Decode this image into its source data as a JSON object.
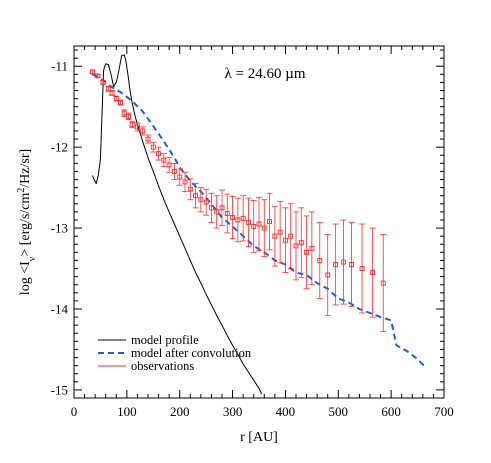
{
  "chart_data": {
    "type": "line",
    "annotation": "λ = 24.60 µm",
    "xlabel": "r [AU]",
    "ylabel_parts": {
      "a": "log <I",
      "sub": "ν",
      "b": "> [erg/s/cm",
      "sup": "2",
      "c": "/Hz/sr]"
    },
    "xlim": [
      0,
      700
    ],
    "ylim": [
      -15.1,
      -10.75
    ],
    "xticks": [
      0,
      100,
      200,
      300,
      400,
      500,
      600,
      700
    ],
    "yticks": [
      -15,
      -14,
      -13,
      -12,
      -11
    ],
    "ytick_labels": [
      "-15",
      "-14",
      "-13",
      "-12",
      "-11"
    ],
    "legend_position": "bottom-left",
    "grid": false,
    "series": [
      {
        "name": "model profile",
        "style": "solid",
        "color": "#000000",
        "x": [
          35,
          38,
          42,
          46,
          50,
          53,
          56,
          60,
          65,
          70,
          75,
          80,
          85,
          90,
          95,
          98,
          102,
          106,
          110,
          115,
          120,
          130,
          140,
          150,
          160,
          170,
          180,
          190,
          200,
          210,
          220,
          230,
          240,
          250,
          260,
          270,
          280,
          290,
          300,
          310,
          320,
          330,
          340,
          350,
          355
        ],
        "y": [
          -12.35,
          -12.4,
          -12.45,
          -12.35,
          -12.15,
          -11.6,
          -11.05,
          -10.97,
          -10.98,
          -11.1,
          -11.25,
          -11.2,
          -11.05,
          -10.87,
          -10.86,
          -10.93,
          -11.1,
          -11.3,
          -11.45,
          -11.6,
          -11.72,
          -11.93,
          -12.13,
          -12.3,
          -12.48,
          -12.65,
          -12.8,
          -12.95,
          -13.1,
          -13.25,
          -13.4,
          -13.55,
          -13.68,
          -13.82,
          -13.95,
          -14.08,
          -14.2,
          -14.33,
          -14.45,
          -14.56,
          -14.68,
          -14.78,
          -14.88,
          -14.98,
          -15.05
        ]
      },
      {
        "name": "model after convolution",
        "style": "dashed",
        "color": "#1f5fd6",
        "x": [
          35,
          50,
          70,
          90,
          110,
          130,
          150,
          170,
          190,
          200,
          220,
          240,
          260,
          280,
          300,
          320,
          340,
          360,
          380,
          400,
          420,
          440,
          460,
          480,
          500,
          520,
          540,
          560,
          580,
          590,
          600,
          610,
          630,
          650,
          665
        ],
        "y": [
          -11.1,
          -11.15,
          -11.25,
          -11.33,
          -11.43,
          -11.56,
          -11.74,
          -11.93,
          -12.13,
          -12.25,
          -12.42,
          -12.55,
          -12.7,
          -12.87,
          -12.98,
          -13.1,
          -13.22,
          -13.3,
          -13.4,
          -13.45,
          -13.55,
          -13.58,
          -13.68,
          -13.75,
          -13.87,
          -13.92,
          -14.0,
          -14.05,
          -14.1,
          -14.12,
          -14.14,
          -14.45,
          -14.52,
          -14.62,
          -14.72
        ]
      },
      {
        "name": "observations",
        "style": "markers-errorbars",
        "color": "#ff2a2a",
        "x": [
          35,
          45,
          55,
          65,
          72,
          80,
          88,
          95,
          103,
          110,
          120,
          130,
          140,
          150,
          160,
          170,
          180,
          190,
          200,
          210,
          220,
          230,
          240,
          250,
          260,
          270,
          280,
          290,
          300,
          310,
          320,
          330,
          340,
          350,
          360,
          370,
          380,
          390,
          400,
          410,
          420,
          430,
          440,
          450,
          465,
          480,
          495,
          510,
          525,
          545,
          565,
          585
        ],
        "y": [
          -11.07,
          -11.12,
          -11.2,
          -11.28,
          -11.33,
          -11.4,
          -11.45,
          -11.58,
          -11.62,
          -11.72,
          -11.75,
          -11.8,
          -11.9,
          -12.0,
          -12.08,
          -12.16,
          -12.22,
          -12.3,
          -12.37,
          -12.43,
          -12.52,
          -12.6,
          -12.65,
          -12.68,
          -12.75,
          -12.8,
          -12.75,
          -12.82,
          -12.87,
          -12.9,
          -12.88,
          -12.93,
          -12.98,
          -12.95,
          -13.0,
          -12.92,
          -13.1,
          -13.05,
          -13.15,
          -13.1,
          -13.22,
          -13.18,
          -13.3,
          -13.25,
          -13.4,
          -13.58,
          -13.45,
          -13.42,
          -13.45,
          -13.5,
          -13.55,
          -13.68
        ],
        "err": [
          0.02,
          0.02,
          0.02,
          0.03,
          0.03,
          0.03,
          0.03,
          0.04,
          0.04,
          0.04,
          0.05,
          0.05,
          0.05,
          0.06,
          0.08,
          0.08,
          0.09,
          0.1,
          0.1,
          0.12,
          0.13,
          0.15,
          0.15,
          0.16,
          0.18,
          0.2,
          0.22,
          0.24,
          0.26,
          0.27,
          0.28,
          0.3,
          0.32,
          0.33,
          0.35,
          0.35,
          0.37,
          0.38,
          0.4,
          0.4,
          0.42,
          0.43,
          0.45,
          0.45,
          0.47,
          0.5,
          0.5,
          0.52,
          0.52,
          0.55,
          0.55,
          0.6
        ]
      }
    ]
  }
}
